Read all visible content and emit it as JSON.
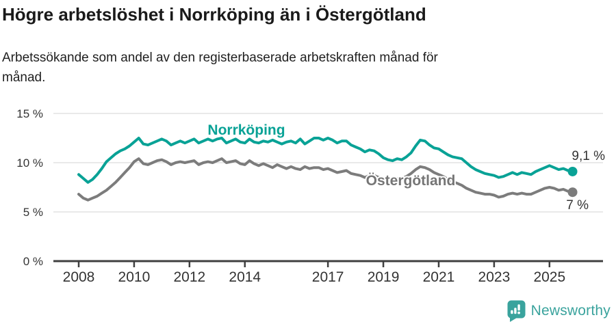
{
  "title": "Högre arbetslöshet i Norrköping än i Östergötland",
  "subtitle": "Arbetssökande som andel av den registerbaserade arbetskraften månad för månad.",
  "footer": {
    "brand": "Newsworthy"
  },
  "colors": {
    "norrkoping_line": "#09a296",
    "ostergotland_line": "#7c7c7c",
    "ostergotland_label": "#757575",
    "axis": "#3f3f3f",
    "grid": "#dcdcdc",
    "tick_text": "#333333",
    "logo_teal": "#3aa39d"
  },
  "chart_data": {
    "type": "line",
    "title": "Högre arbetslöshet i Norrköping än i Östergötland",
    "subtitle": "Arbetssökande som andel av den registerbaserade arbetskraften månad för månad.",
    "unit": "percent",
    "x_start": 2008.0,
    "x_step_years": 0.1666667,
    "ylim": [
      0,
      15.8
    ],
    "grid": "horizontal",
    "y_tick_values": [
      0,
      5,
      10,
      15
    ],
    "y_tick_labels": [
      "0 %",
      "5 %",
      "10 %",
      "15 %"
    ],
    "x_tick_values": [
      2008,
      2010,
      2012,
      2014,
      2017,
      2019,
      2021,
      2023,
      2025
    ],
    "x_tick_labels": [
      "2008",
      "2010",
      "2012",
      "2014",
      "2017",
      "2019",
      "2021",
      "2023",
      "2025"
    ],
    "series": [
      {
        "name": "Norrköping",
        "color": "#09a296",
        "end_label": "9,1 %",
        "end_value": 9.1,
        "values": [
          8.8,
          8.4,
          8.0,
          8.3,
          8.8,
          9.4,
          10.1,
          10.5,
          10.9,
          11.2,
          11.4,
          11.7,
          12.1,
          12.5,
          11.9,
          11.8,
          12.0,
          12.2,
          12.4,
          12.2,
          11.8,
          12.0,
          12.2,
          12.0,
          12.2,
          12.4,
          12.0,
          12.2,
          12.4,
          12.2,
          12.4,
          12.5,
          12.0,
          12.2,
          12.4,
          12.1,
          12.0,
          12.4,
          12.1,
          12.0,
          12.2,
          12.1,
          12.3,
          12.1,
          11.9,
          12.1,
          12.2,
          12.0,
          12.4,
          11.9,
          12.2,
          12.5,
          12.5,
          12.3,
          12.5,
          12.3,
          12.0,
          12.2,
          12.2,
          11.8,
          11.6,
          11.4,
          11.1,
          11.3,
          11.2,
          10.9,
          10.5,
          10.3,
          10.2,
          10.4,
          10.3,
          10.6,
          11.0,
          11.7,
          12.3,
          12.2,
          11.8,
          11.5,
          11.4,
          11.1,
          10.8,
          10.6,
          10.5,
          10.4,
          10.0,
          9.6,
          9.3,
          9.1,
          8.9,
          8.8,
          8.7,
          8.5,
          8.6,
          8.8,
          9.0,
          8.8,
          9.0,
          8.9,
          8.8,
          9.1,
          9.3,
          9.5,
          9.7,
          9.5,
          9.3,
          9.4,
          9.2,
          9.1
        ]
      },
      {
        "name": "Östergötland",
        "color": "#7c7c7c",
        "end_label": "7 %",
        "end_value": 7.0,
        "values": [
          6.8,
          6.4,
          6.2,
          6.4,
          6.6,
          6.9,
          7.2,
          7.6,
          8.0,
          8.5,
          9.0,
          9.5,
          10.1,
          10.4,
          9.9,
          9.8,
          10.0,
          10.2,
          10.3,
          10.1,
          9.8,
          10.0,
          10.1,
          10.0,
          10.1,
          10.2,
          9.8,
          10.0,
          10.1,
          10.0,
          10.2,
          10.4,
          10.0,
          10.1,
          10.2,
          9.9,
          9.8,
          10.2,
          9.9,
          9.7,
          9.9,
          9.7,
          9.5,
          9.8,
          9.6,
          9.4,
          9.6,
          9.4,
          9.3,
          9.6,
          9.4,
          9.5,
          9.5,
          9.3,
          9.4,
          9.2,
          9.0,
          9.1,
          9.2,
          8.9,
          8.8,
          8.7,
          8.5,
          8.7,
          8.7,
          8.5,
          8.4,
          8.3,
          8.2,
          8.4,
          8.4,
          8.6,
          8.9,
          9.3,
          9.6,
          9.5,
          9.3,
          9.0,
          8.8,
          8.6,
          8.3,
          8.1,
          7.9,
          7.7,
          7.4,
          7.2,
          7.0,
          6.9,
          6.8,
          6.8,
          6.7,
          6.5,
          6.6,
          6.8,
          6.9,
          6.8,
          6.9,
          6.8,
          6.8,
          7.0,
          7.2,
          7.4,
          7.5,
          7.4,
          7.2,
          7.3,
          7.1,
          7.0
        ]
      }
    ],
    "legend_position": "inline-labels"
  }
}
